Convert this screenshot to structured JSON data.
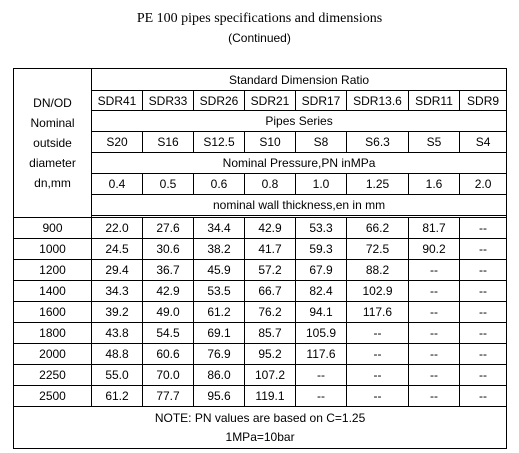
{
  "title": "PE 100 pipes specifications and dimensions",
  "subtitle": "(Continued)",
  "table": {
    "left_header": [
      "DN/OD",
      "Nominal",
      "outside",
      "diameter",
      "dn,mm"
    ],
    "sdr_header": "Standard Dimension Ratio",
    "sdr_values": [
      "SDR41",
      "SDR33",
      "SDR26",
      "SDR21",
      "SDR17",
      "SDR13.6",
      "SDR11",
      "SDR9"
    ],
    "series_header": "Pipes Series",
    "series_values": [
      "S20",
      "S16",
      "S12.5",
      "S10",
      "S8",
      "S6.3",
      "S5",
      "S4"
    ],
    "pressure_header": "Nominal Pressure,PN inMPa",
    "pressure_values": [
      "0.4",
      "0.5",
      "0.6",
      "0.8",
      "1.0",
      "1.25",
      "1.6",
      "2.0"
    ],
    "thickness_header": "nominal wall thickness,en in mm",
    "rows": [
      {
        "dn": "900",
        "values": [
          "22.0",
          "27.6",
          "34.4",
          "42.9",
          "53.3",
          "66.2",
          "81.7",
          "--"
        ]
      },
      {
        "dn": "1000",
        "values": [
          "24.5",
          "30.6",
          "38.2",
          "41.7",
          "59.3",
          "72.5",
          "90.2",
          "--"
        ]
      },
      {
        "dn": "1200",
        "values": [
          "29.4",
          "36.7",
          "45.9",
          "57.2",
          "67.9",
          "88.2",
          "--",
          "--"
        ]
      },
      {
        "dn": "1400",
        "values": [
          "34.3",
          "42.9",
          "53.5",
          "66.7",
          "82.4",
          "102.9",
          "--",
          "--"
        ]
      },
      {
        "dn": "1600",
        "values": [
          "39.2",
          "49.0",
          "61.2",
          "76.2",
          "94.1",
          "117.6",
          "--",
          "--"
        ]
      },
      {
        "dn": "1800",
        "values": [
          "43.8",
          "54.5",
          "69.1",
          "85.7",
          "105.9",
          "--",
          "--",
          "--"
        ]
      },
      {
        "dn": "2000",
        "values": [
          "48.8",
          "60.6",
          "76.9",
          "95.2",
          "117.6",
          "--",
          "--",
          "--"
        ]
      },
      {
        "dn": "2250",
        "values": [
          "55.0",
          "70.0",
          "86.0",
          "107.2",
          "--",
          "--",
          "--",
          "--"
        ]
      },
      {
        "dn": "2500",
        "values": [
          "61.2",
          "77.7",
          "95.6",
          "119.1",
          "--",
          "--",
          "--",
          "--"
        ]
      }
    ],
    "note_lines": [
      "NOTE: PN values are based on C=1.25",
      "1MPa=10bar"
    ]
  }
}
